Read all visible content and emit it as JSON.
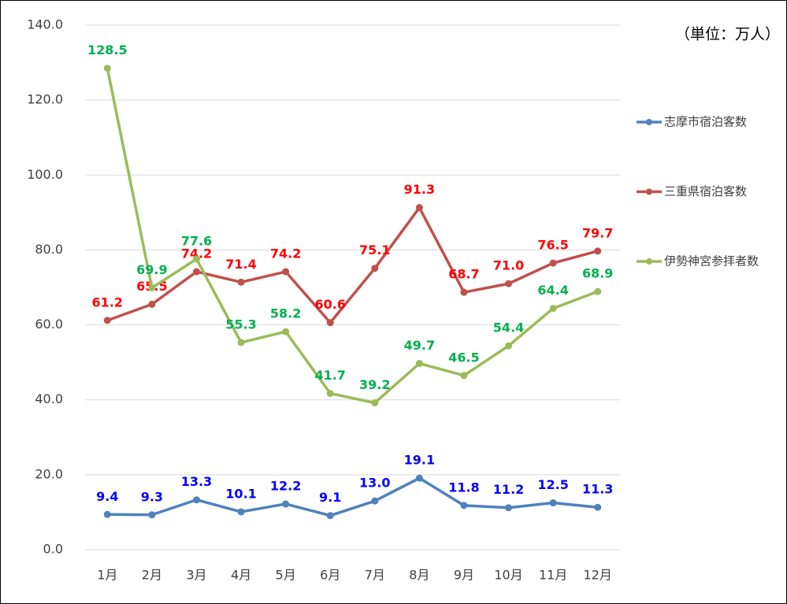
{
  "chart_data": {
    "type": "line",
    "annotation": "（単位：万人）",
    "categories": [
      "1月",
      "2月",
      "3月",
      "4月",
      "5月",
      "6月",
      "7月",
      "8月",
      "9月",
      "10月",
      "11月",
      "12月"
    ],
    "series": [
      {
        "name": "志摩市宿泊客数",
        "color": "#4f81bd",
        "label_color": "#0000ff",
        "values": [
          9.4,
          9.3,
          13.3,
          10.1,
          12.2,
          9.1,
          13.0,
          19.1,
          11.8,
          11.2,
          12.5,
          11.3
        ],
        "value_labels": [
          "9.4",
          "9.3",
          "13.3",
          "10.1",
          "12.2",
          "9.1",
          "13.0",
          "19.1",
          "11.8",
          "11.2",
          "12.5",
          "11.3"
        ]
      },
      {
        "name": "三重県宿泊客数",
        "color": "#c0504d",
        "label_color": "#ff0000",
        "values": [
          61.2,
          65.5,
          74.2,
          71.4,
          74.2,
          60.6,
          75.1,
          91.3,
          68.7,
          71.0,
          76.5,
          79.7
        ],
        "value_labels": [
          "61.2",
          "65.5",
          "74.2",
          "71.4",
          "74.2",
          "60.6",
          "75.1",
          "91.3",
          "68.7",
          "71.0",
          "76.5",
          "79.7"
        ]
      },
      {
        "name": "伊勢神宮参拝者数",
        "color": "#9bbb59",
        "label_color": "#00b050",
        "values": [
          128.5,
          69.9,
          77.6,
          55.3,
          58.2,
          41.7,
          39.2,
          49.7,
          46.5,
          54.4,
          64.4,
          68.9
        ],
        "value_labels": [
          "128.5",
          "69.9",
          "77.6",
          "55.3",
          "58.2",
          "41.7",
          "39.2",
          "49.7",
          "46.5",
          "54.4",
          "64.4",
          "68.9"
        ]
      }
    ],
    "ylim": [
      0,
      140
    ],
    "yticks": [
      {
        "value": 0,
        "label": "0.0"
      },
      {
        "value": 20,
        "label": "20.0"
      },
      {
        "value": 40,
        "label": "40.0"
      },
      {
        "value": 60,
        "label": "60.0"
      },
      {
        "value": 80,
        "label": "80.0"
      },
      {
        "value": 100,
        "label": "100.0"
      },
      {
        "value": 120,
        "label": "120.0"
      },
      {
        "value": 140,
        "label": "140.0"
      }
    ],
    "grid": true,
    "legend": "right"
  }
}
